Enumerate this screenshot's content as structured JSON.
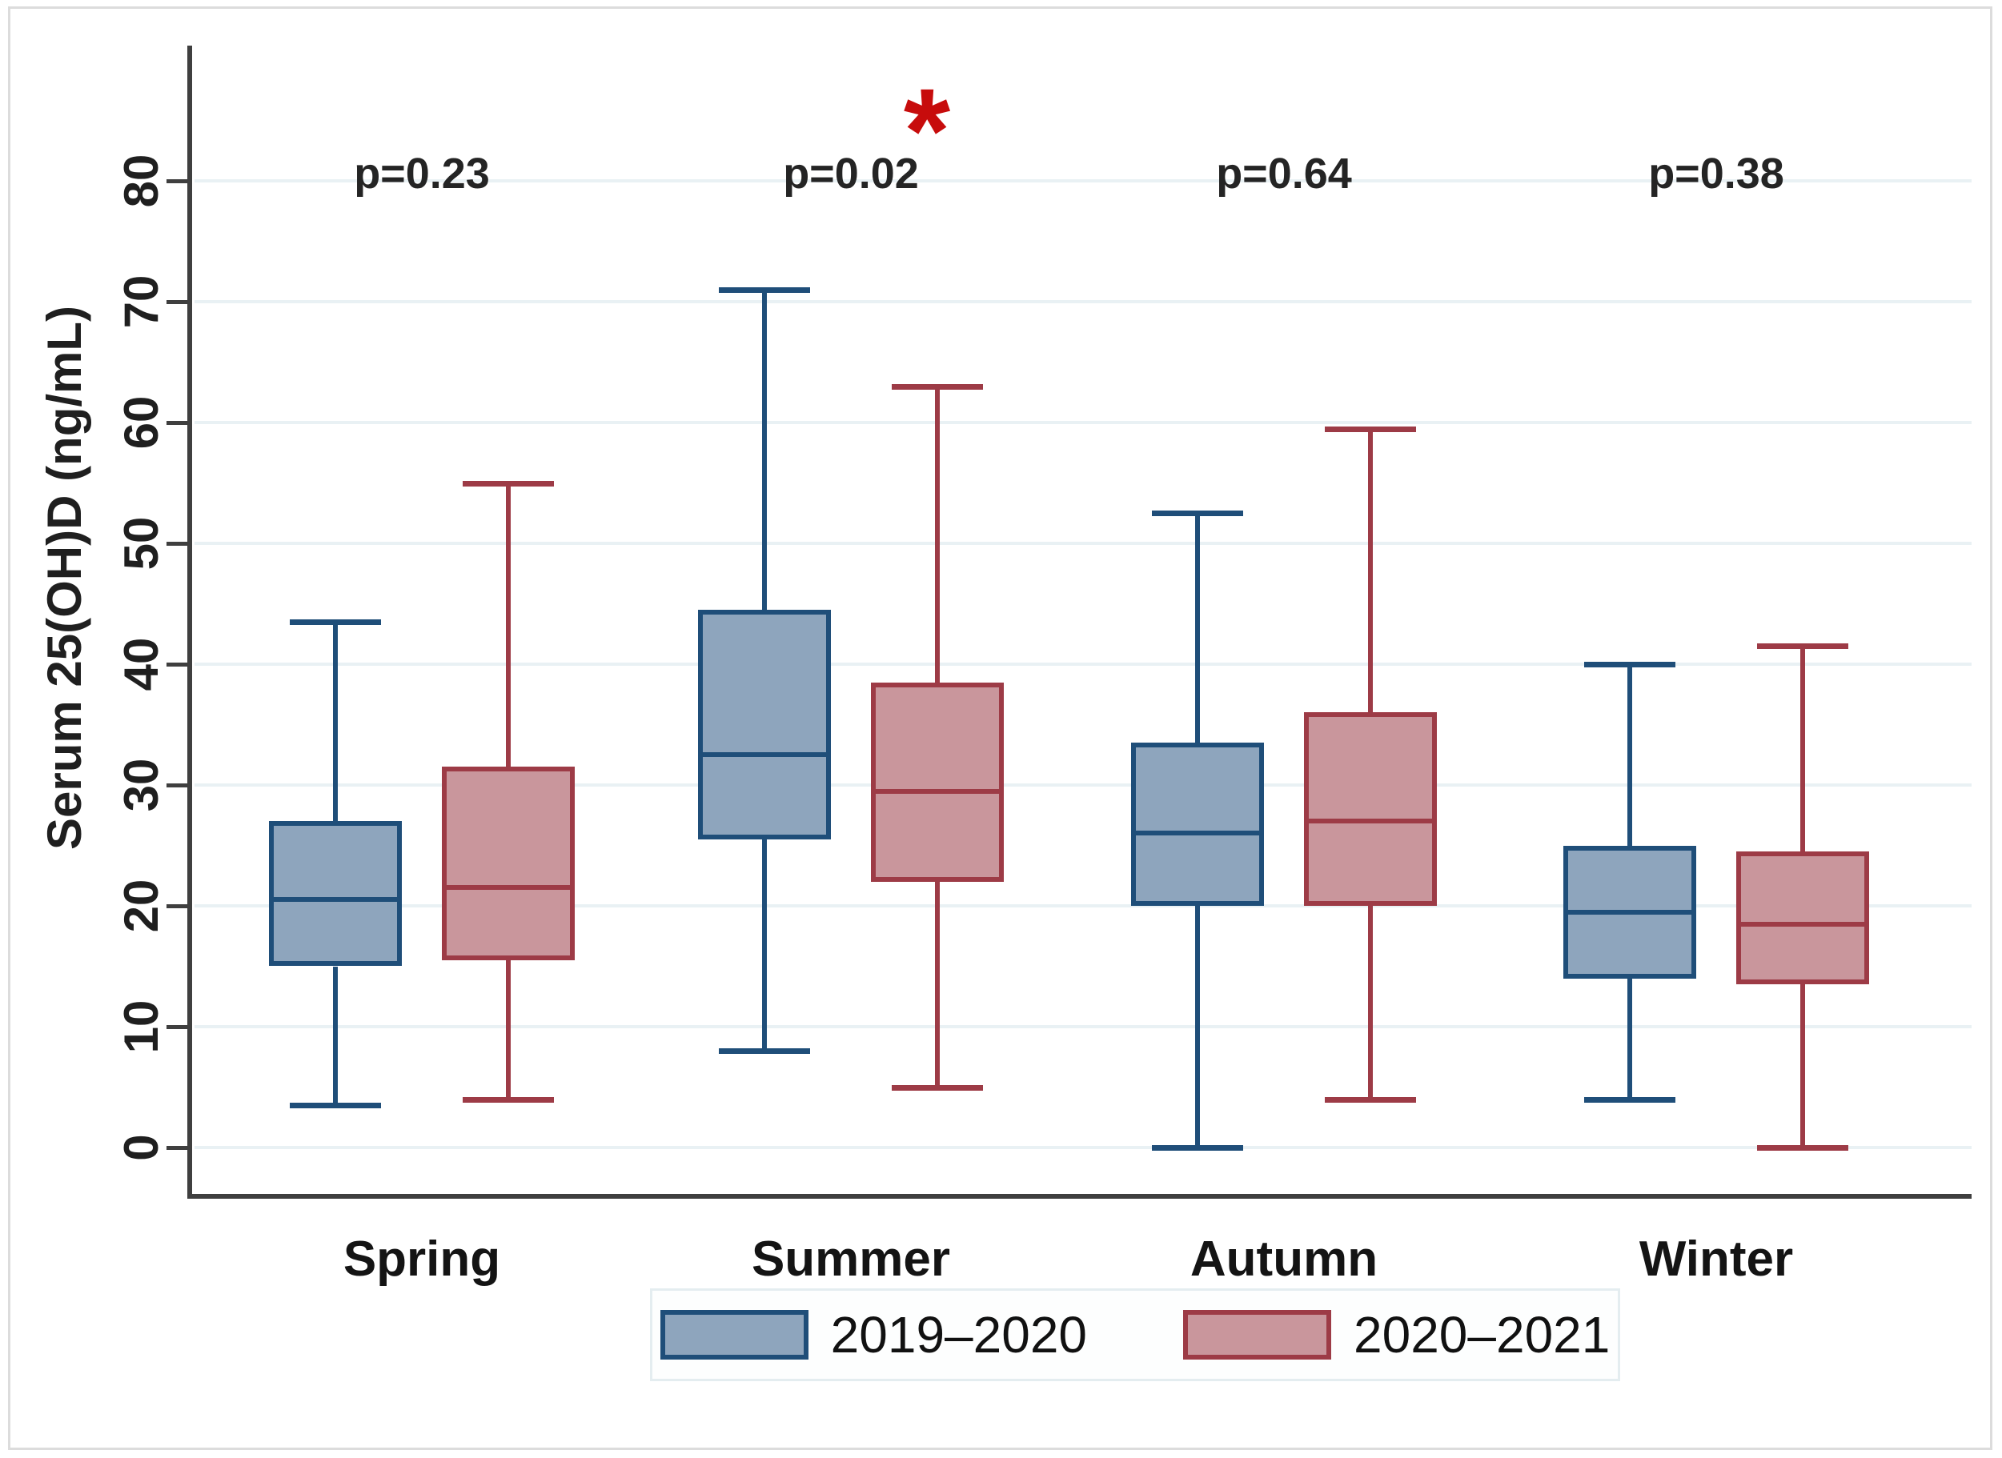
{
  "chart_data": {
    "type": "box",
    "title": "",
    "ylabel": "Serum 25(OH)D (ng/mL)",
    "xlabel": "",
    "categories": [
      "Spring",
      "Summer",
      "Autumn",
      "Winter"
    ],
    "y_ticks": [
      0,
      10,
      20,
      30,
      40,
      50,
      60,
      70,
      80
    ],
    "ylim": [
      -4,
      91
    ],
    "grid": "horizontal",
    "legend_position": "bottom",
    "series": [
      {
        "name": "2019–2020",
        "fill": "#8ea5bd",
        "stroke": "#1f4e79",
        "boxes": [
          {
            "category": "Spring",
            "low": 3.5,
            "q1": 15,
            "median": 20.5,
            "q3": 27,
            "high": 43.5
          },
          {
            "category": "Summer",
            "low": 8,
            "q1": 25.5,
            "median": 32.5,
            "q3": 44.5,
            "high": 71
          },
          {
            "category": "Autumn",
            "low": 0,
            "q1": 20,
            "median": 26,
            "q3": 33.5,
            "high": 52.5
          },
          {
            "category": "Winter",
            "low": 4,
            "q1": 14,
            "median": 19.5,
            "q3": 25,
            "high": 40
          }
        ]
      },
      {
        "name": "2020–2021",
        "fill": "#c9969c",
        "stroke": "#9d3b46",
        "boxes": [
          {
            "category": "Spring",
            "low": 4,
            "q1": 15.5,
            "median": 21.5,
            "q3": 31.5,
            "high": 55
          },
          {
            "category": "Summer",
            "low": 5,
            "q1": 22,
            "median": 29.5,
            "q3": 38.5,
            "high": 63
          },
          {
            "category": "Autumn",
            "low": 4,
            "q1": 20,
            "median": 27,
            "q3": 36,
            "high": 59.5
          },
          {
            "category": "Winter",
            "low": 0,
            "q1": 13.5,
            "median": 18.5,
            "q3": 24.5,
            "high": 41.5
          }
        ]
      }
    ],
    "annotations": {
      "p_values": [
        {
          "category": "Spring",
          "label": "p=0.23",
          "significant": false
        },
        {
          "category": "Summer",
          "label": "p=0.02",
          "significant": true
        },
        {
          "category": "Autumn",
          "label": "p=0.64",
          "significant": false
        },
        {
          "category": "Winter",
          "label": "p=0.38",
          "significant": false
        }
      ],
      "significance_marker": "*",
      "significance_color": "#c70c0c"
    },
    "colors": {
      "gridline": "#e9f1f4",
      "axis": "#3f3f3f",
      "text": "#1f1f1f"
    }
  }
}
